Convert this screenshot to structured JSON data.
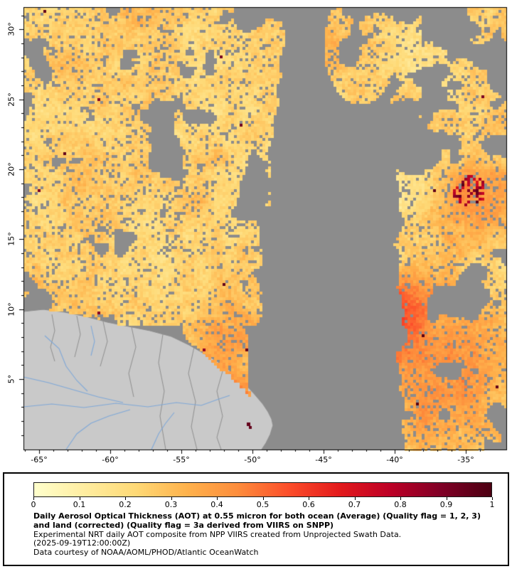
{
  "map": {
    "lat_ticks": [
      "30°",
      "25°",
      "20°",
      "15°",
      "10°",
      "5°"
    ],
    "lat_values": [
      30,
      25,
      20,
      15,
      10,
      5
    ],
    "lon_ticks": [
      "-65°",
      "-60°",
      "-55°",
      "-50°",
      "-45°",
      "-40°",
      "-35°"
    ],
    "lon_values": [
      -65,
      -60,
      -55,
      -50,
      -45,
      -40,
      -35
    ],
    "colors": {
      "no_data_gray": "#8c8c8c",
      "land_gray": "#c9c9c9",
      "border_gray": "#8f8f8f",
      "river_blue": "#7fa8d8",
      "frame_black": "#000000"
    }
  },
  "legend": {
    "ticks": [
      "0",
      "0.1",
      "0.2",
      "0.3",
      "0.4",
      "0.5",
      "0.6",
      "0.7",
      "0.8",
      "0.9",
      "1"
    ],
    "scale_min": 0,
    "scale_max": 1,
    "colormap": [
      "#ffffcc",
      "#ffeda0",
      "#fed976",
      "#feb24c",
      "#fd8d3c",
      "#fc4e2a",
      "#e31a1c",
      "#bd0026",
      "#800026",
      "#4c0012"
    ],
    "title_bold": "Daily Aerosol Optical Thickness (AOT) at 0.55 micron for both ocean (Average) (Quality flag = 1, 2, 3) and land (corrected) (Quality flag = 3a derived from VIIRS on SNPP)",
    "line2": "Experimental NRT daily AOT composite from NPP VIIRS created from Unprojected Swath Data.",
    "line3": "(2025-09-19T12:00:00Z)",
    "line4": "Data courtesy of NOAA/AOML/PHOD/Atlantic OceanWatch"
  }
}
